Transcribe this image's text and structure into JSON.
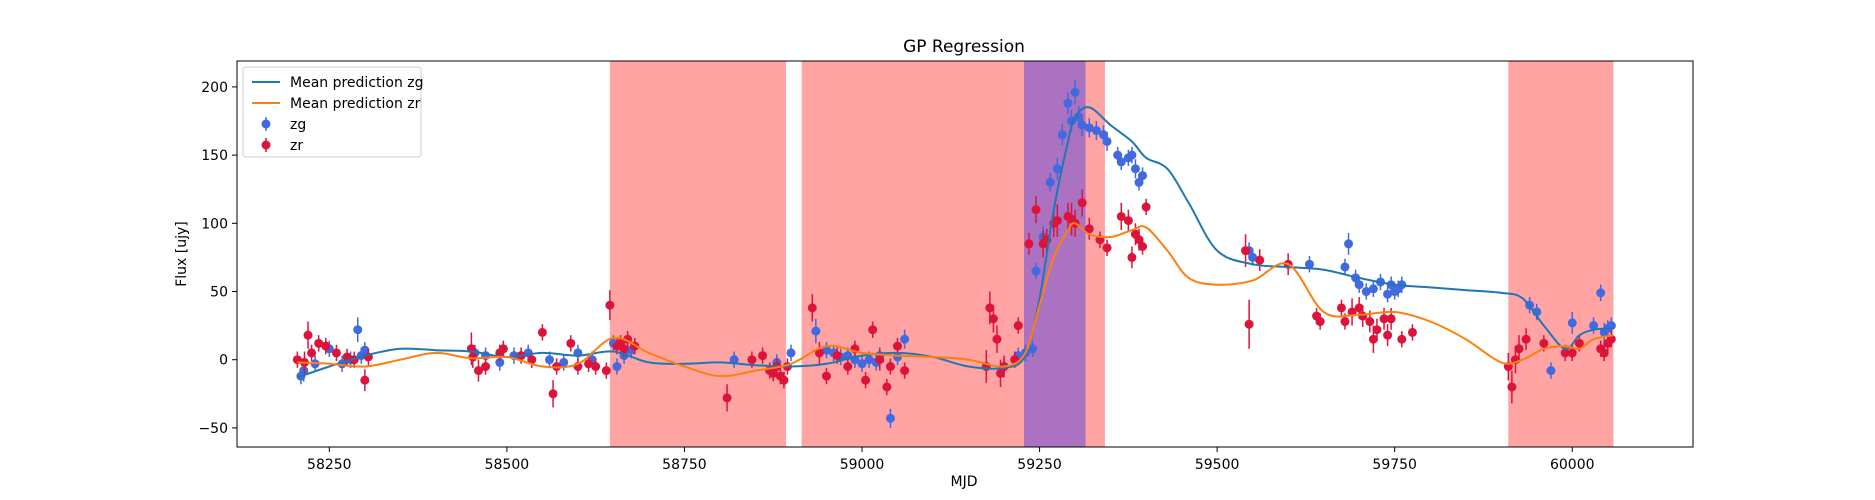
{
  "chart_data": {
    "type": "scatter",
    "title": "GP Regression",
    "xlabel": "MJD",
    "ylabel": "Flux [ujy]",
    "xlim": [
      58120,
      60170
    ],
    "ylim": [
      -64,
      219
    ],
    "xticks": [
      58250,
      58500,
      58750,
      59000,
      59250,
      59500,
      59750,
      60000
    ],
    "yticks": [
      -50,
      0,
      50,
      100,
      150,
      200
    ],
    "grid": false,
    "legend_position": "top-left",
    "colors": {
      "zg_line": "#1f77b4",
      "zr_line": "#ff7f0e",
      "zg_points": "#4169e1",
      "zr_points": "#dc143c",
      "red_band": "#ff6666",
      "purple_band": "#9b59b6"
    },
    "shaded_regions": [
      {
        "x0": 58645,
        "x1": 58893,
        "color": "red"
      },
      {
        "x0": 58915,
        "x1": 59228,
        "color": "red"
      },
      {
        "x0": 59228,
        "x1": 59315,
        "color": "purple"
      },
      {
        "x0": 59315,
        "x1": 59342,
        "color": "red"
      },
      {
        "x0": 59910,
        "x1": 60058,
        "color": "red"
      }
    ],
    "series": [
      {
        "name": "Mean prediction zg",
        "kind": "line",
        "color_key": "zg_line",
        "x": [
          58205,
          58250,
          58300,
          58350,
          58400,
          58450,
          58500,
          58550,
          58600,
          58650,
          58700,
          58750,
          58800,
          58850,
          58900,
          58950,
          59000,
          59050,
          59100,
          59150,
          59200,
          59230,
          59250,
          59270,
          59290,
          59300,
          59320,
          59350,
          59380,
          59400,
          59430,
          59460,
          59500,
          59550,
          59600,
          59650,
          59700,
          59750,
          59800,
          59850,
          59900,
          59930,
          59960,
          59990,
          60010,
          60030,
          60058
        ],
        "y": [
          -13,
          -5,
          3,
          8,
          7,
          6,
          2,
          5,
          3,
          6,
          -2,
          -3,
          -2,
          -4,
          -5,
          -3,
          3,
          5,
          2,
          -5,
          -6,
          3,
          45,
          110,
          160,
          178,
          185,
          172,
          160,
          148,
          140,
          115,
          80,
          70,
          68,
          66,
          60,
          55,
          53,
          51,
          49,
          45,
          25,
          8,
          18,
          22,
          23
        ]
      },
      {
        "name": "Mean prediction zr",
        "kind": "line",
        "color_key": "zr_line",
        "x": [
          58205,
          58250,
          58300,
          58350,
          58400,
          58450,
          58500,
          58550,
          58600,
          58650,
          58700,
          58750,
          58800,
          58850,
          58900,
          58950,
          59000,
          59050,
          59100,
          59150,
          59200,
          59230,
          59250,
          59270,
          59290,
          59300,
          59320,
          59350,
          59380,
          59400,
          59430,
          59460,
          59500,
          59550,
          59600,
          59650,
          59700,
          59750,
          59800,
          59850,
          59900,
          59930,
          59960,
          59990,
          60010,
          60030,
          60058
        ],
        "y": [
          -2,
          -3,
          -5,
          0,
          5,
          1,
          2,
          -5,
          -3,
          16,
          5,
          -5,
          -12,
          -8,
          -3,
          10,
          5,
          3,
          2,
          0,
          -5,
          5,
          40,
          75,
          95,
          100,
          92,
          90,
          95,
          97,
          80,
          60,
          55,
          58,
          70,
          35,
          33,
          35,
          28,
          15,
          -2,
          0,
          8,
          10,
          8,
          15,
          18
        ]
      },
      {
        "name": "zg",
        "kind": "errorbar",
        "color_key": "zg_points",
        "x": [
          58210,
          58214,
          58230,
          58250,
          58268,
          58280,
          58290,
          58295,
          58300,
          58455,
          58470,
          58490,
          58510,
          58530,
          58560,
          58580,
          58600,
          58620,
          58650,
          58655,
          58665,
          58675,
          58820,
          58880,
          58900,
          58935,
          58950,
          58960,
          58970,
          58980,
          58990,
          59000,
          59010,
          59020,
          59025,
          59040,
          59050,
          59060,
          59200,
          59220,
          59230,
          59240,
          59245,
          59255,
          59265,
          59275,
          59282,
          59290,
          59295,
          59300,
          59305,
          59310,
          59320,
          59330,
          59340,
          59345,
          59360,
          59365,
          59375,
          59380,
          59385,
          59390,
          59395,
          59545,
          59550,
          59630,
          59680,
          59685,
          59695,
          59700,
          59710,
          59720,
          59730,
          59740,
          59745,
          59750,
          59755,
          59760,
          59940,
          59950,
          59970,
          60000,
          60030,
          60040,
          60045,
          60050,
          60055
        ],
        "y": [
          -12,
          -8,
          -3,
          8,
          -3,
          0,
          22,
          3,
          7,
          5,
          3,
          -2,
          3,
          5,
          0,
          -2,
          5,
          0,
          12,
          -5,
          3,
          7,
          0,
          -2,
          5,
          21,
          7,
          5,
          2,
          3,
          0,
          -3,
          0,
          -2,
          3,
          -43,
          2,
          15,
          -5,
          3,
          5,
          8,
          65,
          90,
          130,
          140,
          165,
          188,
          175,
          196,
          178,
          172,
          170,
          168,
          165,
          160,
          150,
          145,
          148,
          150,
          140,
          130,
          135,
          80,
          75,
          70,
          68,
          85,
          60,
          55,
          50,
          52,
          57,
          48,
          55,
          50,
          52,
          55,
          40,
          35,
          -8,
          27,
          25,
          49,
          20,
          23,
          25
        ],
        "yerr": [
          6,
          8,
          6,
          6,
          6,
          6,
          9,
          6,
          6,
          6,
          6,
          6,
          6,
          6,
          6,
          6,
          6,
          6,
          6,
          6,
          6,
          6,
          6,
          6,
          6,
          9,
          6,
          6,
          6,
          6,
          6,
          6,
          6,
          6,
          6,
          7,
          6,
          7,
          6,
          6,
          6,
          6,
          6,
          8,
          7,
          8,
          8,
          8,
          8,
          9,
          8,
          8,
          7,
          7,
          7,
          7,
          6,
          6,
          6,
          6,
          7,
          6,
          6,
          6,
          6,
          6,
          6,
          8,
          6,
          6,
          6,
          6,
          6,
          6,
          6,
          6,
          6,
          6,
          6,
          6,
          6,
          8,
          6,
          6,
          7,
          6,
          6
        ]
      },
      {
        "name": "zr",
        "kind": "errorbar",
        "color_key": "zr_points",
        "x": [
          58205,
          58215,
          58220,
          58225,
          58235,
          58245,
          58260,
          58275,
          58285,
          58300,
          58305,
          58450,
          58452,
          58460,
          58470,
          58490,
          58495,
          58520,
          58535,
          58550,
          58565,
          58570,
          58590,
          58600,
          58615,
          58625,
          58640,
          58645,
          58655,
          58660,
          58665,
          58670,
          58680,
          58810,
          58845,
          58860,
          58870,
          58875,
          58880,
          58885,
          58890,
          58895,
          58930,
          58940,
          58950,
          58965,
          58980,
          58990,
          59005,
          59015,
          59025,
          59035,
          59040,
          59050,
          59060,
          59175,
          59180,
          59185,
          59190,
          59195,
          59200,
          59215,
          59220,
          59235,
          59245,
          59255,
          59260,
          59270,
          59275,
          59290,
          59295,
          59300,
          59310,
          59320,
          59335,
          59345,
          59365,
          59375,
          59380,
          59385,
          59390,
          59395,
          59400,
          59540,
          59545,
          59560,
          59600,
          59640,
          59645,
          59675,
          59680,
          59690,
          59700,
          59705,
          59715,
          59720,
          59725,
          59735,
          59740,
          59745,
          59760,
          59775,
          59910,
          59915,
          59920,
          59925,
          59935,
          59960,
          59990,
          60000,
          60010,
          60040,
          60045,
          60050,
          60055
        ],
        "y": [
          0,
          -2,
          18,
          5,
          12,
          10,
          5,
          2,
          0,
          -15,
          2,
          8,
          2,
          -8,
          -5,
          5,
          8,
          3,
          0,
          20,
          -25,
          -5,
          12,
          -5,
          -3,
          -5,
          -8,
          40,
          10,
          12,
          8,
          15,
          10,
          -28,
          0,
          3,
          -8,
          -10,
          -5,
          -12,
          -15,
          -5,
          38,
          5,
          -12,
          3,
          -5,
          8,
          -15,
          22,
          0,
          -20,
          -5,
          10,
          -8,
          -5,
          38,
          30,
          15,
          -10,
          -5,
          0,
          25,
          85,
          110,
          85,
          88,
          100,
          102,
          105,
          103,
          100,
          115,
          96,
          88,
          82,
          105,
          102,
          75,
          92,
          88,
          83,
          112,
          80,
          26,
          73,
          70,
          32,
          28,
          38,
          28,
          35,
          38,
          32,
          28,
          15,
          22,
          30,
          18,
          30,
          15,
          20,
          -5,
          -20,
          0,
          8,
          15,
          12,
          5,
          5,
          12,
          8,
          5,
          12,
          15
        ],
        "yerr": [
          6,
          8,
          10,
          6,
          6,
          6,
          6,
          6,
          6,
          8,
          6,
          12,
          8,
          8,
          6,
          6,
          6,
          6,
          6,
          6,
          10,
          6,
          6,
          6,
          6,
          6,
          6,
          11,
          6,
          6,
          6,
          6,
          6,
          10,
          6,
          6,
          6,
          6,
          6,
          6,
          6,
          6,
          10,
          8,
          6,
          6,
          6,
          6,
          6,
          6,
          8,
          6,
          6,
          6,
          6,
          12,
          12,
          10,
          10,
          10,
          8,
          6,
          6,
          8,
          10,
          10,
          8,
          10,
          12,
          10,
          12,
          10,
          10,
          8,
          6,
          6,
          10,
          8,
          8,
          8,
          8,
          6,
          6,
          12,
          18,
          8,
          8,
          6,
          6,
          6,
          6,
          10,
          8,
          8,
          8,
          10,
          8,
          8,
          8,
          8,
          6,
          6,
          10,
          12,
          10,
          10,
          8,
          6,
          6,
          6,
          6,
          6,
          6,
          6,
          6
        ]
      }
    ]
  }
}
